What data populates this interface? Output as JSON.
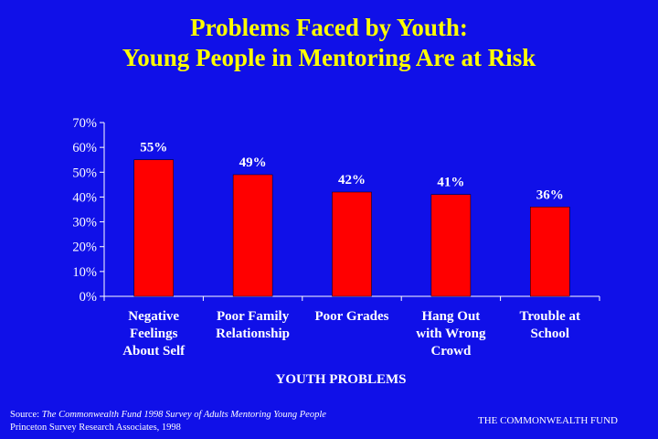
{
  "title_line1": "Problems Faced by Youth:",
  "title_line2": "Young People in Mentoring Are at Risk",
  "chart_data": {
    "type": "bar",
    "categories": [
      [
        "Negative",
        "Feelings",
        "About Self"
      ],
      [
        "Poor Family",
        "Relationship"
      ],
      [
        "Poor Grades"
      ],
      [
        "Hang Out",
        "with Wrong",
        "Crowd"
      ],
      [
        "Trouble at",
        "School"
      ]
    ],
    "values": [
      55,
      49,
      42,
      41,
      36
    ],
    "value_labels": [
      "55%",
      "49%",
      "42%",
      "41%",
      "36%"
    ],
    "xlabel": "YOUTH PROBLEMS",
    "ylabel": "",
    "ylim": [
      0,
      70
    ],
    "yticks": [
      "0%",
      "10%",
      "20%",
      "30%",
      "40%",
      "50%",
      "60%",
      "70%"
    ],
    "grid": false,
    "bar_color": "#ff0000",
    "axis_color": "#ffffff"
  },
  "footer": {
    "source_prefix": "Source: ",
    "source_title": "The Commonwealth Fund 1998 Survey of Adults Mentoring Young People",
    "source_line2": "Princeton Survey Research Associates, 1998",
    "brand": "THE COMMONWEALTH FUND"
  },
  "colors": {
    "background": "#1010e8",
    "title": "#ffff00",
    "text": "#ffffff",
    "bar": "#ff0000"
  }
}
